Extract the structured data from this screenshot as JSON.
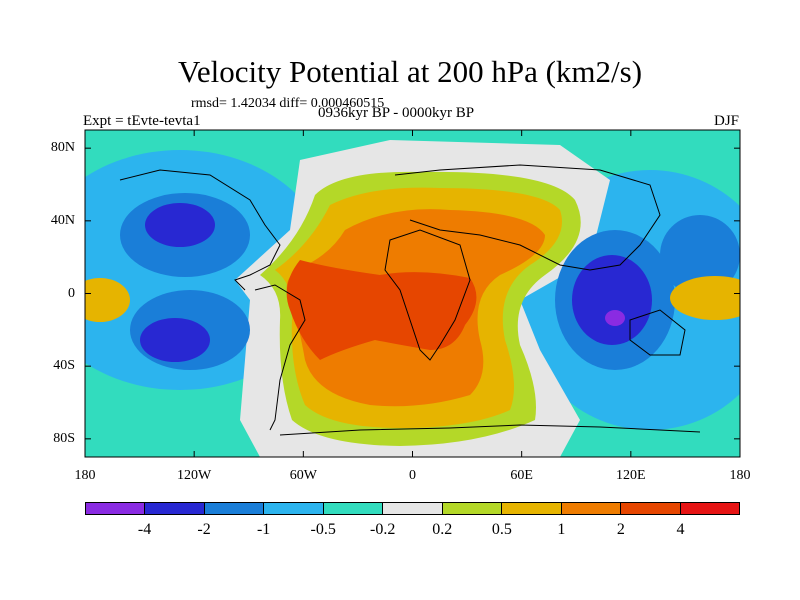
{
  "title": "Velocity Potential at 200 hPa (km2/s)",
  "rmsd_text": "rmsd= 1.42034 diff= 0.000460515",
  "experiment": "Expt = tEvte-tevta1",
  "period": "0936kyr BP - 0000kyr BP",
  "season": "DJF",
  "map": {
    "lon_range": [
      -180,
      180
    ],
    "lat_range": [
      -90,
      90
    ],
    "lon_labels": [
      "180",
      "120W",
      "60W",
      "0",
      "60E",
      "120E",
      "180"
    ],
    "lat_labels": [
      "80N",
      "40N",
      "0",
      "40S",
      "80S"
    ]
  },
  "colorbar": {
    "colors": [
      "#8a2be2",
      "#2828d2",
      "#1a7ed8",
      "#2cb4ee",
      "#32dcbe",
      "#e6e6e6",
      "#b4d828",
      "#e6b400",
      "#ee7c00",
      "#e64600",
      "#e61414"
    ],
    "labels": [
      "-4",
      "-2",
      "-1",
      "-0.5",
      "-0.2",
      "0.2",
      "0.5",
      "1",
      "2",
      "4"
    ]
  }
}
